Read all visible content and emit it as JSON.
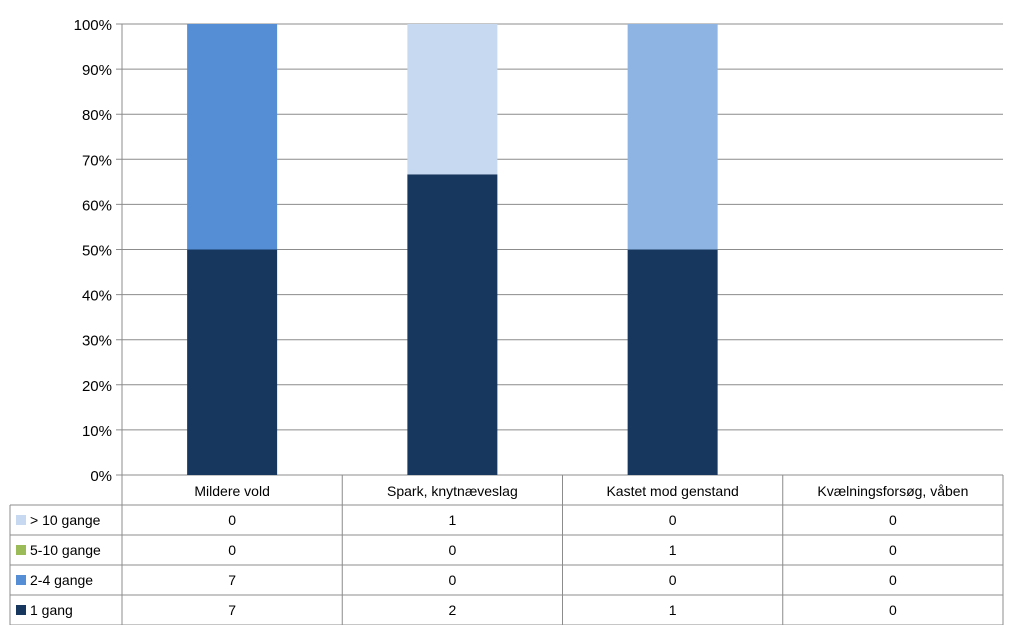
{
  "chart_data": {
    "type": "bar",
    "stacked": true,
    "normalized": true,
    "categories": [
      "Mildere vold",
      "Spark, knytnæveslag",
      "Kastet mod genstand",
      "Kvælningsforsøg, våben"
    ],
    "series": [
      {
        "name": "1 gang",
        "values": [
          7,
          2,
          1,
          0
        ],
        "color": "#17375e"
      },
      {
        "name": "2-4 gange",
        "values": [
          7,
          0,
          0,
          0
        ],
        "color": "#558ed5"
      },
      {
        "name": "5-10 gange",
        "values": [
          0,
          0,
          1,
          0
        ],
        "color": "#9bbb59",
        "plotted_color": "#8eb4e3"
      },
      {
        "name": "> 10 gange",
        "values": [
          0,
          1,
          0,
          0
        ],
        "color": "#c6d9f1"
      }
    ],
    "table_row_order": [
      "> 10 gange",
      "5-10 gange",
      "2-4 gange",
      "1 gang"
    ],
    "y_ticks": [
      "0%",
      "10%",
      "20%",
      "30%",
      "40%",
      "50%",
      "60%",
      "70%",
      "80%",
      "90%",
      "100%"
    ],
    "ylim": [
      0,
      100
    ],
    "grid": true,
    "legend": "data-table"
  }
}
